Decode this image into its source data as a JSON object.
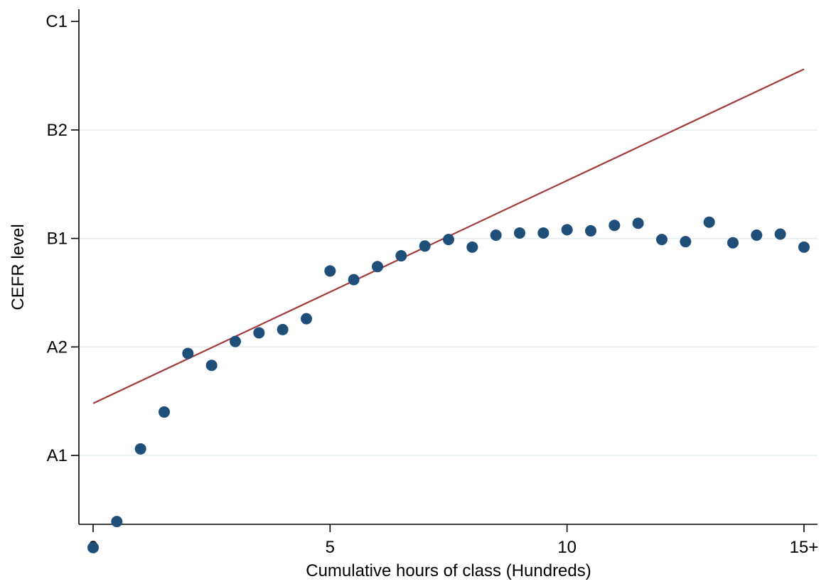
{
  "chart_data": {
    "type": "scatter",
    "title": "",
    "xlabel": "Cumulative hours of class (Hundreds)",
    "ylabel": "CEFR level",
    "xlim": [
      0,
      15
    ],
    "ylim": [
      0,
      5
    ],
    "x_ticks": [
      {
        "value": 0,
        "label": "0"
      },
      {
        "value": 5,
        "label": "5"
      },
      {
        "value": 10,
        "label": "10"
      },
      {
        "value": 15,
        "label": "15+"
      }
    ],
    "y_ticks": [
      {
        "value": 1,
        "label": "A1"
      },
      {
        "value": 2,
        "label": "A2"
      },
      {
        "value": 3,
        "label": "B1"
      },
      {
        "value": 4,
        "label": "B2"
      },
      {
        "value": 5,
        "label": "C1"
      }
    ],
    "grid": "horizontal",
    "series": [
      {
        "kind": "scatter",
        "color": "#1f4e79",
        "x": [
          0,
          0.5,
          1,
          1.5,
          2,
          2.5,
          3,
          3.5,
          4,
          4.5,
          5,
          5.5,
          6,
          6.5,
          7,
          7.5,
          8,
          8.5,
          9,
          9.5,
          10,
          10.5,
          11,
          11.5,
          12,
          12.5,
          13,
          13.5,
          14,
          14.5,
          15
        ],
        "y": [
          0.15,
          0.39,
          1.06,
          1.4,
          1.94,
          1.83,
          2.05,
          2.13,
          2.16,
          2.26,
          2.7,
          2.62,
          2.74,
          2.84,
          2.93,
          2.99,
          2.92,
          3.03,
          3.05,
          3.05,
          3.08,
          3.07,
          3.12,
          3.14,
          2.99,
          2.97,
          3.15,
          2.96,
          3.03,
          3.04,
          2.92
        ]
      },
      {
        "kind": "line",
        "color": "#a23b3b",
        "x": [
          0,
          15
        ],
        "y": [
          1.48,
          4.56
        ]
      }
    ],
    "colors": {
      "axis": "#000000",
      "grid": "#e4eef1"
    }
  }
}
